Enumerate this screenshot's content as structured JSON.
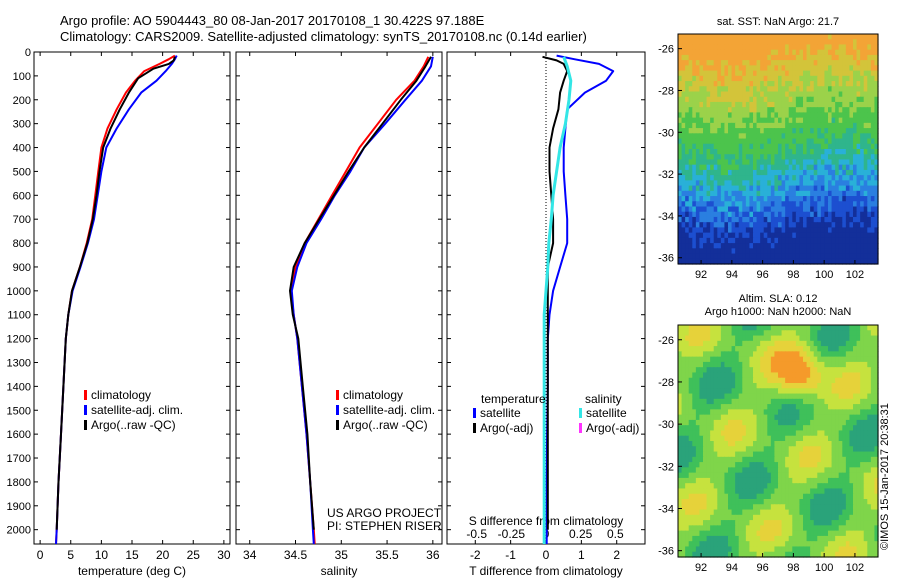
{
  "header": {
    "line1": "Argo profile: AO 5904443_80 08-Jan-2017 20170108_1 30.422S 97.188E",
    "line2": "Climatology: CARS2009. Satellite-adjusted climatology: synTS_20170108.nc (0.14d earlier)"
  },
  "credit": "©IMOS 15-Jan-2017 20:38:31",
  "colors": {
    "climatology": "#ff0000",
    "satellite": "#0000ff",
    "argo": "#000000",
    "sal_sat": "#33e6e6",
    "sal_argo": "#ff33ff"
  },
  "depth_axis": {
    "ylim": [
      0,
      2060
    ],
    "ticks": [
      0,
      100,
      200,
      300,
      400,
      500,
      600,
      700,
      800,
      900,
      1000,
      1100,
      1200,
      1300,
      1400,
      1500,
      1600,
      1700,
      1800,
      1900,
      2000
    ],
    "inverted": true
  },
  "chart_data": [
    {
      "id": "temperature",
      "type": "line",
      "xlabel": "temperature (deg C)",
      "xlim": [
        -1,
        31
      ],
      "xticks": [
        0,
        5,
        10,
        15,
        20,
        25,
        30
      ],
      "legend": [
        "climatology",
        "satellite-adj. clim.",
        "Argo(..raw -QC)"
      ],
      "series": [
        {
          "name": "climatology",
          "color": "red",
          "points": [
            [
              22,
              15
            ],
            [
              21,
              30
            ],
            [
              19.5,
              50
            ],
            [
              17,
              80
            ],
            [
              15.5,
              120
            ],
            [
              14,
              170
            ],
            [
              12.5,
              240
            ],
            [
              11,
              320
            ],
            [
              10,
              400
            ],
            [
              9.5,
              500
            ],
            [
              9,
              600
            ],
            [
              8.5,
              700
            ],
            [
              7.6,
              800
            ],
            [
              6.5,
              900
            ],
            [
              5.2,
              1000
            ],
            [
              4.6,
              1100
            ],
            [
              4.2,
              1200
            ],
            [
              3.8,
              1400
            ],
            [
              3.4,
              1600
            ],
            [
              3.0,
              1800
            ],
            [
              2.7,
              2000
            ],
            [
              2.6,
              2060
            ]
          ]
        },
        {
          "name": "satellite-adj. clim.",
          "color": "blue",
          "points": [
            [
              22.3,
              15
            ],
            [
              22,
              30
            ],
            [
              21.5,
              50
            ],
            [
              20.5,
              80
            ],
            [
              19,
              120
            ],
            [
              16.5,
              170
            ],
            [
              14.5,
              240
            ],
            [
              12.5,
              320
            ],
            [
              10.8,
              400
            ],
            [
              10,
              500
            ],
            [
              9.4,
              600
            ],
            [
              8.8,
              700
            ],
            [
              7.8,
              800
            ],
            [
              6.6,
              900
            ],
            [
              5.3,
              1000
            ],
            [
              4.6,
              1100
            ],
            [
              4.2,
              1200
            ],
            [
              3.8,
              1400
            ],
            [
              3.4,
              1600
            ],
            [
              3.0,
              1800
            ],
            [
              2.7,
              2000
            ],
            [
              2.6,
              2060
            ]
          ]
        },
        {
          "name": "Argo(..raw -QC)",
          "color": "black",
          "points": [
            [
              22,
              20
            ],
            [
              21.8,
              35
            ],
            [
              21,
              50
            ],
            [
              18.5,
              70
            ],
            [
              16,
              110
            ],
            [
              14.5,
              170
            ],
            [
              13,
              240
            ],
            [
              11.5,
              320
            ],
            [
              10.3,
              400
            ],
            [
              9.7,
              500
            ],
            [
              9.2,
              600
            ],
            [
              8.6,
              700
            ],
            [
              7.7,
              800
            ],
            [
              6.5,
              900
            ],
            [
              5.2,
              1000
            ],
            [
              4.6,
              1100
            ],
            [
              4.2,
              1200
            ],
            [
              3.8,
              1400
            ],
            [
              3.4,
              1600
            ],
            [
              3.0,
              1800
            ],
            [
              2.7,
              2000
            ]
          ]
        }
      ]
    },
    {
      "id": "salinity",
      "type": "line",
      "xlabel": "salinity",
      "xlim": [
        33.85,
        36.1
      ],
      "xticks": [
        34,
        34.5,
        35,
        35.5,
        36
      ],
      "tick_labels": [
        "34",
        "34.5",
        "35",
        "35.5",
        "36"
      ],
      "legend": [
        "climatology",
        "satellite-adj. clim.",
        "Argo(..raw -QC)"
      ],
      "annotation": [
        "US ARGO PROJECT",
        "PI: STEPHEN RISER"
      ],
      "series": [
        {
          "name": "climatology",
          "color": "red",
          "points": [
            [
              35.95,
              20
            ],
            [
              35.9,
              60
            ],
            [
              35.8,
              120
            ],
            [
              35.6,
              200
            ],
            [
              35.4,
              300
            ],
            [
              35.2,
              400
            ],
            [
              35.05,
              500
            ],
            [
              34.9,
              600
            ],
            [
              34.75,
              700
            ],
            [
              34.6,
              800
            ],
            [
              34.5,
              900
            ],
            [
              34.45,
              1000
            ],
            [
              34.48,
              1100
            ],
            [
              34.52,
              1200
            ],
            [
              34.57,
              1400
            ],
            [
              34.62,
              1600
            ],
            [
              34.66,
              1800
            ],
            [
              34.7,
              2000
            ],
            [
              34.71,
              2060
            ]
          ]
        },
        {
          "name": "satellite-adj. clim.",
          "color": "blue",
          "points": [
            [
              36.0,
              20
            ],
            [
              35.98,
              60
            ],
            [
              35.88,
              120
            ],
            [
              35.7,
              200
            ],
            [
              35.48,
              300
            ],
            [
              35.25,
              400
            ],
            [
              35.1,
              500
            ],
            [
              34.93,
              600
            ],
            [
              34.78,
              700
            ],
            [
              34.62,
              800
            ],
            [
              34.52,
              900
            ],
            [
              34.46,
              1000
            ],
            [
              34.48,
              1100
            ],
            [
              34.52,
              1200
            ],
            [
              34.57,
              1400
            ],
            [
              34.62,
              1600
            ],
            [
              34.66,
              1800
            ],
            [
              34.69,
              2000
            ],
            [
              34.7,
              2060
            ]
          ]
        },
        {
          "name": "Argo(..raw -QC)",
          "color": "black",
          "points": [
            [
              35.98,
              20
            ],
            [
              35.92,
              60
            ],
            [
              35.82,
              120
            ],
            [
              35.65,
              200
            ],
            [
              35.45,
              300
            ],
            [
              35.25,
              400
            ],
            [
              35.08,
              500
            ],
            [
              34.92,
              600
            ],
            [
              34.76,
              700
            ],
            [
              34.6,
              800
            ],
            [
              34.48,
              900
            ],
            [
              34.44,
              1000
            ],
            [
              34.47,
              1100
            ],
            [
              34.53,
              1200
            ],
            [
              34.58,
              1400
            ],
            [
              34.63,
              1600
            ],
            [
              34.66,
              1800
            ],
            [
              34.7,
              2000
            ]
          ]
        }
      ]
    },
    {
      "id": "difference",
      "type": "line",
      "xlabel": "T difference from climatology",
      "xlabel_top": "S difference from climatology",
      "xlim": [
        -2.8,
        2.8
      ],
      "xticks": [
        -2,
        -1,
        0,
        1,
        2
      ],
      "s_tick_labels": [
        "-0.5",
        "-0.25",
        "0",
        "0.25",
        "0.5"
      ],
      "legend_headers": [
        "temperature",
        "salinity"
      ],
      "legend": [
        [
          "satellite",
          "Argo(-adj)"
        ],
        [
          "satellite",
          "Argo(-adj)"
        ]
      ],
      "series": [
        {
          "name": "temperature satellite",
          "color": "blue",
          "points": [
            [
              0.3,
              15
            ],
            [
              0.8,
              30
            ],
            [
              1.5,
              50
            ],
            [
              1.9,
              80
            ],
            [
              1.7,
              120
            ],
            [
              1.1,
              170
            ],
            [
              0.6,
              240
            ],
            [
              0.55,
              320
            ],
            [
              0.5,
              400
            ],
            [
              0.5,
              500
            ],
            [
              0.55,
              600
            ],
            [
              0.6,
              700
            ],
            [
              0.6,
              800
            ],
            [
              0.4,
              900
            ],
            [
              0.2,
              1000
            ],
            [
              0.1,
              1100
            ],
            [
              0.05,
              1200
            ],
            [
              0.05,
              1400
            ],
            [
              0.03,
              1600
            ],
            [
              0.02,
              1800
            ],
            [
              0.02,
              2000
            ],
            [
              0.02,
              2060
            ]
          ]
        },
        {
          "name": "temperature Argo(-adj)",
          "color": "black",
          "points": [
            [
              -0.1,
              20
            ],
            [
              0.3,
              35
            ],
            [
              0.5,
              50
            ],
            [
              0.6,
              80
            ],
            [
              0.5,
              120
            ],
            [
              0.4,
              170
            ],
            [
              0.35,
              240
            ],
            [
              0.2,
              320
            ],
            [
              0.1,
              400
            ],
            [
              0.1,
              500
            ],
            [
              0.15,
              600
            ],
            [
              0.2,
              700
            ],
            [
              0.2,
              800
            ],
            [
              0.05,
              900
            ],
            [
              0.05,
              1000
            ],
            [
              0.05,
              1100
            ],
            [
              0.05,
              1200
            ],
            [
              0.05,
              1400
            ],
            [
              0.05,
              1600
            ],
            [
              0.05,
              1800
            ],
            [
              0.05,
              2000
            ]
          ]
        },
        {
          "name": "salinity satellite",
          "color": "cyan",
          "points": [
            [
              0.5,
              20
            ],
            [
              0.6,
              60
            ],
            [
              0.7,
              120
            ],
            [
              0.65,
              200
            ],
            [
              0.55,
              300
            ],
            [
              0.4,
              400
            ],
            [
              0.3,
              500
            ],
            [
              0.2,
              600
            ],
            [
              0.15,
              700
            ],
            [
              0.08,
              800
            ],
            [
              0.05,
              900
            ],
            [
              0.0,
              1000
            ],
            [
              -0.05,
              1100
            ],
            [
              -0.05,
              1200
            ],
            [
              -0.05,
              1400
            ],
            [
              -0.05,
              1600
            ],
            [
              -0.05,
              1800
            ],
            [
              -0.05,
              2000
            ],
            [
              -0.05,
              2060
            ]
          ]
        }
      ]
    },
    {
      "id": "sst-map",
      "type": "heatmap",
      "title": "sat. SST: NaN Argo: 21.7",
      "xticks": [
        "92",
        "94",
        "96",
        "98",
        "100",
        "102"
      ],
      "yticks": [
        "-26",
        "-28",
        "-30",
        "-32",
        "-34",
        "-36"
      ]
    },
    {
      "id": "sla-map",
      "type": "heatmap",
      "title": "Altim. SLA: 0.12",
      "subtitle": "Argo h1000: NaN h2000: NaN",
      "xticks": [
        "92",
        "94",
        "96",
        "98",
        "100",
        "102"
      ],
      "yticks": [
        "-26",
        "-28",
        "-30",
        "-32",
        "-34",
        "-36"
      ]
    }
  ]
}
